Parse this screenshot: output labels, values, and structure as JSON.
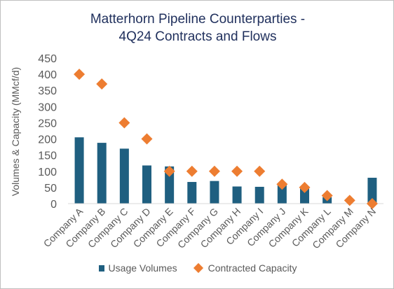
{
  "chart_data": {
    "type": "bar",
    "title_lines": [
      "Matterhorn Pipeline Counterparties -",
      "4Q24 Contracts and Flows"
    ],
    "ylabel": "Volumes & Capacity  (MMcf/d)",
    "xlabel": "",
    "ylim": [
      0,
      450
    ],
    "yticks": [
      0,
      50,
      100,
      150,
      200,
      250,
      300,
      350,
      400,
      450
    ],
    "grid": false,
    "legend_position": "bottom",
    "categories": [
      "Company A",
      "Company B",
      "Company C",
      "Company D",
      "Company E",
      "Company F",
      "Company G",
      "Company H",
      "Company I",
      "Company J",
      "Company K",
      "Company L",
      "Company M",
      "Company N"
    ],
    "series": [
      {
        "name": "Usage Volumes",
        "mark": "bar",
        "color": "#1f5f80",
        "values": [
          205,
          188,
          170,
          118,
          115,
          67,
          70,
          53,
          52,
          60,
          47,
          20,
          0,
          80
        ]
      },
      {
        "name": "Contracted Capacity",
        "mark": "diamond",
        "color": "#ed7d31",
        "values": [
          400,
          370,
          250,
          200,
          100,
          100,
          100,
          100,
          100,
          60,
          50,
          25,
          10,
          0
        ]
      }
    ]
  }
}
